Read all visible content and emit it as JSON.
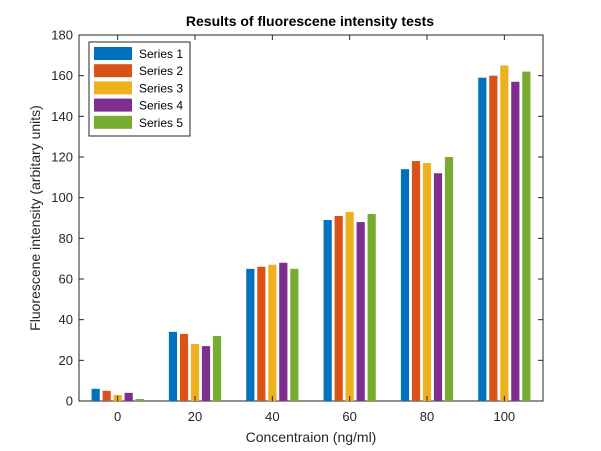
{
  "chart_data": {
    "type": "bar",
    "title": "Results of fluorescene intensity tests",
    "xlabel": "Concentraion (ng/ml)",
    "ylabel": "Fluorescene intensity (arbitary units)",
    "categories": [
      "0",
      "20",
      "40",
      "60",
      "80",
      "100"
    ],
    "ylim": [
      0,
      180
    ],
    "yticks": [
      0,
      20,
      40,
      60,
      80,
      100,
      120,
      140,
      160,
      180
    ],
    "grid": false,
    "legend_position": "top-left",
    "series": [
      {
        "name": "Series 1",
        "color": "#0072BD",
        "values": [
          6,
          34,
          65,
          89,
          114,
          159
        ]
      },
      {
        "name": "Series 2",
        "color": "#D95319",
        "values": [
          5,
          33,
          66,
          91,
          118,
          160
        ]
      },
      {
        "name": "Series 3",
        "color": "#EDB120",
        "values": [
          3,
          28,
          67,
          93,
          117,
          165
        ]
      },
      {
        "name": "Series 4",
        "color": "#7E2F8E",
        "values": [
          4,
          27,
          68,
          88,
          112,
          157
        ]
      },
      {
        "name": "Series 5",
        "color": "#77AC30",
        "values": [
          1,
          32,
          65,
          92,
          120,
          162
        ]
      }
    ]
  }
}
